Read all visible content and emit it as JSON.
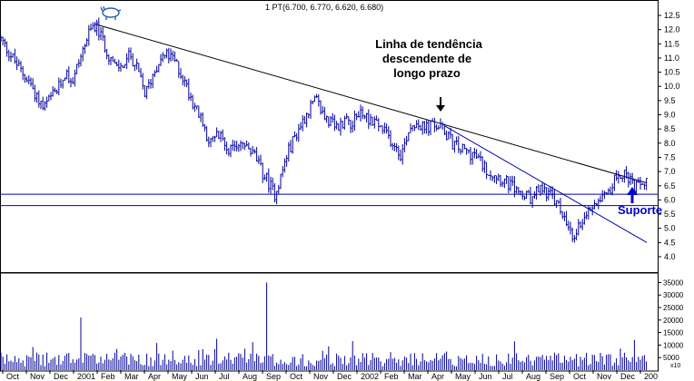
{
  "chart_data": {
    "type": "ohlc",
    "ticker_label": "1 PT",
    "last_bar_label": "1 PT(6.700, 6.770, 6.620, 6.680)",
    "price_axis": {
      "min": 4.0,
      "max": 12.5,
      "step": 0.5,
      "side": "right"
    },
    "volume_axis": {
      "ticks": [
        5000,
        10000,
        15000,
        20000,
        25000,
        30000,
        35000
      ],
      "multiplier_label": "x10"
    },
    "time_axis_labels": [
      "Oct",
      "Nov",
      "Dec",
      "2001",
      "Feb",
      "Mar",
      "Apr",
      "May",
      "Jun",
      "Jul",
      "Aug",
      "Sep",
      "Oct",
      "Nov",
      "Dec",
      "2002",
      "Feb",
      "Mar",
      "Apr",
      "May",
      "Jun",
      "Jul",
      "Aug",
      "Sep",
      "Oct",
      "Nov",
      "Dec",
      "200"
    ],
    "price_series": [
      [
        0,
        11.7
      ],
      [
        8,
        11.3
      ],
      [
        16,
        10.9
      ],
      [
        24,
        10.5
      ],
      [
        32,
        10.2
      ],
      [
        40,
        9.7
      ],
      [
        48,
        9.2
      ],
      [
        56,
        9.6
      ],
      [
        64,
        9.9
      ],
      [
        72,
        10.5
      ],
      [
        80,
        10.2
      ],
      [
        88,
        11.0
      ],
      [
        96,
        11.7
      ],
      [
        104,
        12.2
      ],
      [
        112,
        11.7
      ],
      [
        120,
        11.1
      ],
      [
        128,
        10.6
      ],
      [
        136,
        10.8
      ],
      [
        144,
        11.1
      ],
      [
        152,
        10.5
      ],
      [
        160,
        9.7
      ],
      [
        168,
        10.4
      ],
      [
        176,
        11.0
      ],
      [
        184,
        11.1
      ],
      [
        192,
        10.9
      ],
      [
        200,
        10.4
      ],
      [
        208,
        9.8
      ],
      [
        216,
        9.2
      ],
      [
        224,
        8.6
      ],
      [
        232,
        8.0
      ],
      [
        240,
        8.3
      ],
      [
        248,
        8.0
      ],
      [
        256,
        7.7
      ],
      [
        264,
        8.1
      ],
      [
        272,
        7.8
      ],
      [
        280,
        7.6
      ],
      [
        288,
        7.0
      ],
      [
        296,
        6.6
      ],
      [
        302,
        6.2
      ],
      [
        308,
        6.7
      ],
      [
        316,
        7.6
      ],
      [
        324,
        8.2
      ],
      [
        332,
        8.7
      ],
      [
        340,
        9.2
      ],
      [
        348,
        9.5
      ],
      [
        356,
        9.0
      ],
      [
        364,
        8.7
      ],
      [
        372,
        8.5
      ],
      [
        380,
        8.9
      ],
      [
        388,
        8.7
      ],
      [
        396,
        9.1
      ],
      [
        404,
        8.9
      ],
      [
        412,
        8.8
      ],
      [
        420,
        8.5
      ],
      [
        428,
        8.2
      ],
      [
        436,
        7.9
      ],
      [
        442,
        7.6
      ],
      [
        450,
        8.5
      ],
      [
        458,
        8.8
      ],
      [
        466,
        8.5
      ],
      [
        474,
        8.6
      ],
      [
        482,
        8.6
      ],
      [
        490,
        8.4
      ],
      [
        498,
        8.0
      ],
      [
        506,
        7.8
      ],
      [
        514,
        7.7
      ],
      [
        522,
        7.6
      ],
      [
        530,
        7.3
      ],
      [
        538,
        7.0
      ],
      [
        546,
        6.9
      ],
      [
        554,
        6.7
      ],
      [
        562,
        6.5
      ],
      [
        570,
        6.3
      ],
      [
        578,
        6.1
      ],
      [
        586,
        6.0
      ],
      [
        594,
        6.4
      ],
      [
        602,
        6.3
      ],
      [
        610,
        6.0
      ],
      [
        618,
        5.6
      ],
      [
        624,
        5.1
      ],
      [
        630,
        4.6
      ],
      [
        636,
        5.0
      ],
      [
        642,
        5.4
      ],
      [
        648,
        5.6
      ],
      [
        656,
        6.0
      ],
      [
        664,
        6.3
      ],
      [
        672,
        6.4
      ],
      [
        678,
        6.8
      ],
      [
        686,
        7.0
      ],
      [
        694,
        6.6
      ],
      [
        702,
        6.4
      ],
      [
        708,
        6.6
      ],
      [
        712,
        6.7
      ]
    ],
    "trend_lines": [
      {
        "name": "long-term-downtrend",
        "color": "#000000",
        "from": [
          104,
          12.2
        ],
        "to": [
          712,
          6.6
        ]
      },
      {
        "name": "steep-downtrend",
        "color": "#0000aa",
        "from": [
          490,
          8.6
        ],
        "to": [
          712,
          4.5
        ]
      }
    ],
    "support_levels": [
      {
        "name": "support-upper",
        "value": 6.2,
        "color": "#0000aa"
      },
      {
        "name": "support-lower",
        "value": 5.8,
        "color": "#0000aa"
      }
    ],
    "annotations": {
      "trend_text": [
        "Linha de tendência",
        "descendente de",
        "longo prazo"
      ],
      "support_text": "Suporte"
    },
    "colors": {
      "bars": "#000099",
      "axis": "#000000",
      "annotation_blue": "#0000cc",
      "background": "#ffffff"
    }
  }
}
